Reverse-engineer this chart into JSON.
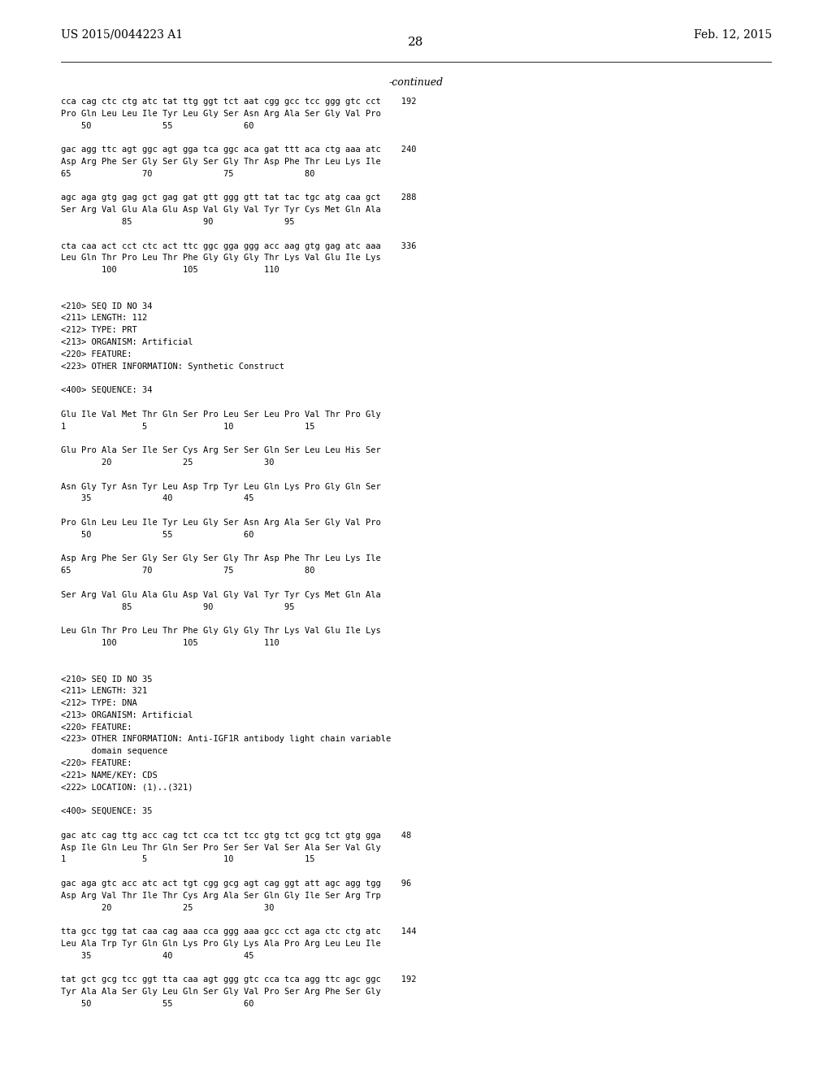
{
  "background_color": "#ffffff",
  "header_left": "US 2015/0044223 A1",
  "header_right": "Feb. 12, 2015",
  "page_number": "28",
  "continued_label": "-continued",
  "content": [
    "cca cag ctc ctg atc tat ttg ggt tct aat cgg gcc tcc ggg gtc cct    192",
    "Pro Gln Leu Leu Ile Tyr Leu Gly Ser Asn Arg Ala Ser Gly Val Pro",
    "    50              55              60",
    "",
    "gac agg ttc agt ggc agt gga tca ggc aca gat ttt aca ctg aaa atc    240",
    "Asp Arg Phe Ser Gly Ser Gly Ser Gly Thr Asp Phe Thr Leu Lys Ile",
    "65              70              75              80",
    "",
    "agc aga gtg gag gct gag gat gtt ggg gtt tat tac tgc atg caa gct    288",
    "Ser Arg Val Glu Ala Glu Asp Val Gly Val Tyr Tyr Cys Met Gln Ala",
    "            85              90              95",
    "",
    "cta caa act cct ctc act ttc ggc gga ggg acc aag gtg gag atc aaa    336",
    "Leu Gln Thr Pro Leu Thr Phe Gly Gly Gly Thr Lys Val Glu Ile Lys",
    "        100             105             110",
    "",
    "",
    "<210> SEQ ID NO 34",
    "<211> LENGTH: 112",
    "<212> TYPE: PRT",
    "<213> ORGANISM: Artificial",
    "<220> FEATURE:",
    "<223> OTHER INFORMATION: Synthetic Construct",
    "",
    "<400> SEQUENCE: 34",
    "",
    "Glu Ile Val Met Thr Gln Ser Pro Leu Ser Leu Pro Val Thr Pro Gly",
    "1               5               10              15",
    "",
    "Glu Pro Ala Ser Ile Ser Cys Arg Ser Ser Gln Ser Leu Leu His Ser",
    "        20              25              30",
    "",
    "Asn Gly Tyr Asn Tyr Leu Asp Trp Tyr Leu Gln Lys Pro Gly Gln Ser",
    "    35              40              45",
    "",
    "Pro Gln Leu Leu Ile Tyr Leu Gly Ser Asn Arg Ala Ser Gly Val Pro",
    "    50              55              60",
    "",
    "Asp Arg Phe Ser Gly Ser Gly Ser Gly Thr Asp Phe Thr Leu Lys Ile",
    "65              70              75              80",
    "",
    "Ser Arg Val Glu Ala Glu Asp Val Gly Val Tyr Tyr Cys Met Gln Ala",
    "            85              90              95",
    "",
    "Leu Gln Thr Pro Leu Thr Phe Gly Gly Gly Thr Lys Val Glu Ile Lys",
    "        100             105             110",
    "",
    "",
    "<210> SEQ ID NO 35",
    "<211> LENGTH: 321",
    "<212> TYPE: DNA",
    "<213> ORGANISM: Artificial",
    "<220> FEATURE:",
    "<223> OTHER INFORMATION: Anti-IGF1R antibody light chain variable",
    "      domain sequence",
    "<220> FEATURE:",
    "<221> NAME/KEY: CDS",
    "<222> LOCATION: (1)..(321)",
    "",
    "<400> SEQUENCE: 35",
    "",
    "gac atc cag ttg acc cag tct cca tct tcc gtg tct gcg tct gtg gga    48",
    "Asp Ile Gln Leu Thr Gln Ser Pro Ser Ser Val Ser Ala Ser Val Gly",
    "1               5               10              15",
    "",
    "gac aga gtc acc atc act tgt cgg gcg agt cag ggt att agc agg tgg    96",
    "Asp Arg Val Thr Ile Thr Cys Arg Ala Ser Gln Gly Ile Ser Arg Trp",
    "        20              25              30",
    "",
    "tta gcc tgg tat caa cag aaa cca ggg aaa gcc cct aga ctc ctg atc    144",
    "Leu Ala Trp Tyr Gln Gln Lys Pro Gly Lys Ala Pro Arg Leu Leu Ile",
    "    35              40              45",
    "",
    "tat gct gcg tcc ggt tta caa agt ggg gtc cca tca agg ttc agc ggc    192",
    "Tyr Ala Ala Ser Gly Leu Gln Ser Gly Val Pro Ser Arg Phe Ser Gly",
    "    50              55              60"
  ]
}
